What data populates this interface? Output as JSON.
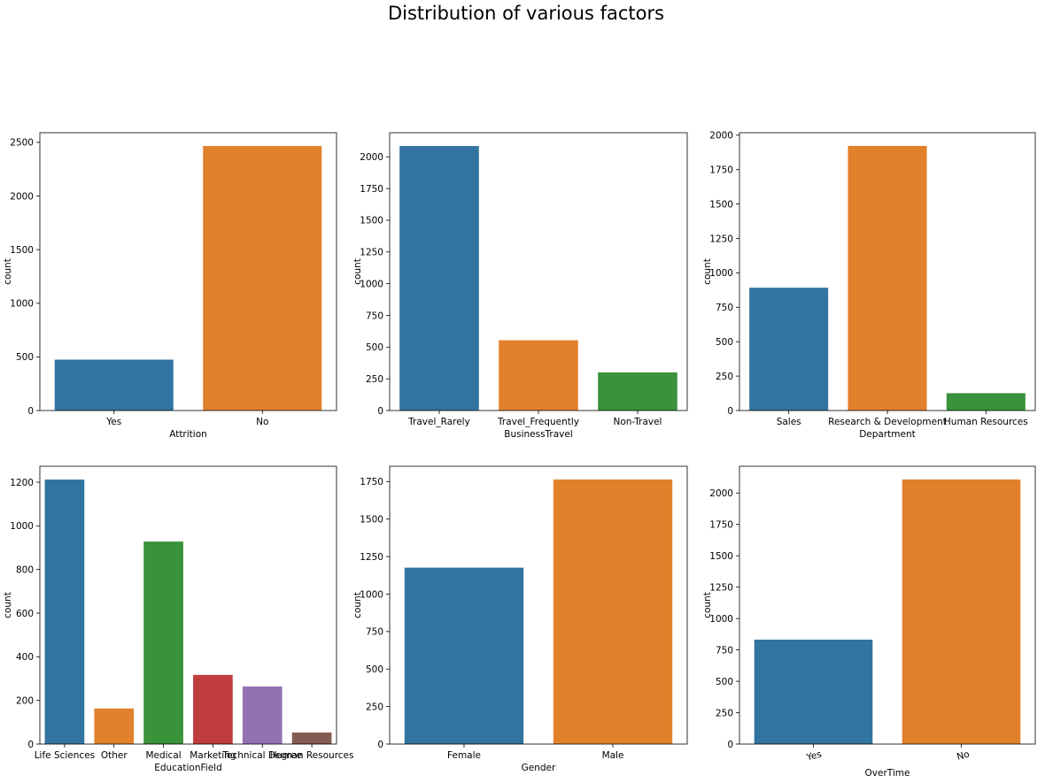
{
  "figure": {
    "title": "Distribution of various factors"
  },
  "colors": {
    "palette": [
      "#3274a1",
      "#e1812c",
      "#3a923a",
      "#c03d3e",
      "#9372b2",
      "#845b53"
    ]
  },
  "chart_data": [
    {
      "type": "bar",
      "title": "",
      "categories": [
        "Yes",
        "No"
      ],
      "values": [
        474,
        2466
      ],
      "xlabel": "Attrition",
      "ylabel": "count",
      "ylim": [
        0,
        2590
      ],
      "yticks": [
        0,
        500,
        1000,
        1500,
        2000,
        2500
      ],
      "grid": false
    },
    {
      "type": "bar",
      "title": "",
      "categories": [
        "Travel_Rarely",
        "Travel_Frequently",
        "Non-Travel"
      ],
      "values": [
        2085,
        554,
        301
      ],
      "xlabel": "BusinessTravel",
      "ylabel": "count",
      "ylim": [
        0,
        2190
      ],
      "yticks": [
        0,
        250,
        500,
        750,
        1000,
        1250,
        1500,
        1750,
        2000
      ],
      "grid": false
    },
    {
      "type": "bar",
      "title": "",
      "categories": [
        "Sales",
        "Research & Development",
        "Human Resources"
      ],
      "values": [
        892,
        1922,
        126
      ],
      "xlabel": "Department",
      "ylabel": "count",
      "ylim": [
        0,
        2018
      ],
      "yticks": [
        0,
        250,
        500,
        750,
        1000,
        1250,
        1500,
        1750,
        2000
      ],
      "grid": false
    },
    {
      "type": "bar",
      "title": "",
      "categories": [
        "Life Sciences",
        "Other",
        "Medical",
        "Marketing",
        "Technical Degree",
        "Human Resources"
      ],
      "values": [
        1212,
        163,
        928,
        317,
        264,
        53
      ],
      "xlabel": "EducationField",
      "ylabel": "count",
      "ylim": [
        0,
        1273
      ],
      "yticks": [
        0,
        200,
        400,
        600,
        800,
        1000,
        1200
      ],
      "grid": false
    },
    {
      "type": "bar",
      "title": "",
      "categories": [
        "Female",
        "Male"
      ],
      "values": [
        1176,
        1764
      ],
      "xlabel": "Gender",
      "ylabel": "count",
      "ylim": [
        0,
        1852
      ],
      "yticks": [
        0,
        250,
        500,
        750,
        1000,
        1250,
        1500,
        1750
      ],
      "grid": false
    },
    {
      "type": "bar",
      "title": "",
      "categories": [
        "Yes",
        "No"
      ],
      "values": [
        832,
        2108
      ],
      "xlabel": "OverTime",
      "ylabel": "count",
      "ylim": [
        0,
        2213
      ],
      "yticks": [
        0,
        250,
        500,
        750,
        1000,
        1250,
        1500,
        1750,
        2000
      ],
      "xtick_rotation": 15,
      "grid": false
    }
  ]
}
